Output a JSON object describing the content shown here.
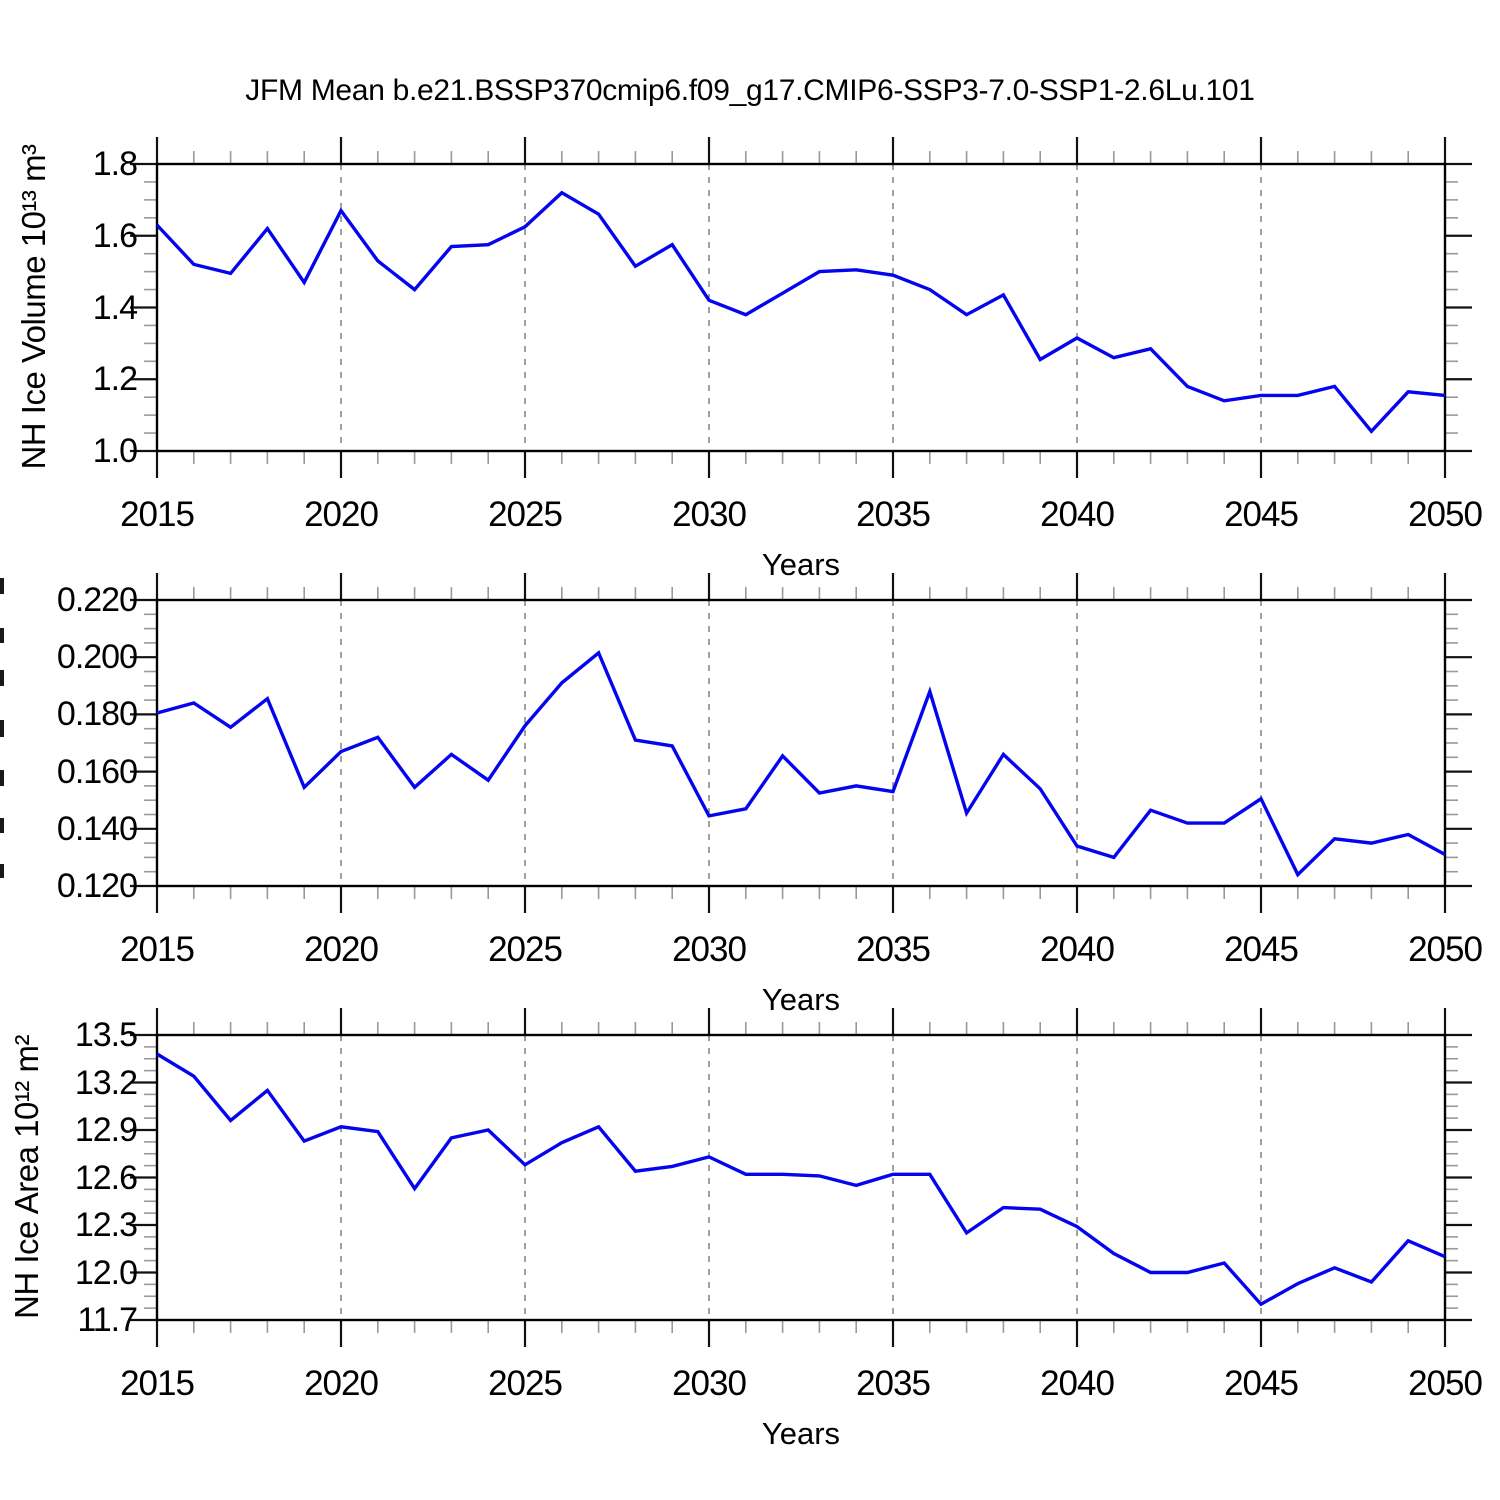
{
  "title": "JFM Mean b.e21.BSSP370cmip6.f09_g17.CMIP6-SSP3-7.0-SSP1-2.6Lu.101",
  "x_axis": {
    "label": "Years",
    "range": [
      2015,
      2050
    ],
    "major_step": 5,
    "minor_step": 1,
    "tick_labels": [
      "2015",
      "2020",
      "2025",
      "2030",
      "2035",
      "2040",
      "2045",
      "2050"
    ],
    "gridline_years": [
      2020,
      2025,
      2030,
      2035,
      2040,
      2045
    ]
  },
  "colors": {
    "line": "#0404ee",
    "gridline": "#787878",
    "axis": "#000000",
    "major_tick": "#111111",
    "minor_tick": "#9a9a9a",
    "background": "#ffffff",
    "text": "#000000"
  },
  "chart_data": [
    {
      "type": "line",
      "panel": "top",
      "ylabel": "NH Ice Volume 10¹³ m³",
      "xlabel": "Years",
      "ylim": [
        1.0,
        1.8
      ],
      "yticks": [
        1.0,
        1.2,
        1.4,
        1.6,
        1.8
      ],
      "ytick_labels": [
        "1.0",
        "1.2",
        "1.4",
        "1.6",
        "1.8"
      ],
      "y_minor_step": 0.05,
      "grid": "vertical-dashed",
      "legend": "none",
      "x": [
        2015,
        2016,
        2017,
        2018,
        2019,
        2020,
        2021,
        2022,
        2023,
        2024,
        2025,
        2026,
        2027,
        2028,
        2029,
        2030,
        2031,
        2032,
        2033,
        2034,
        2035,
        2036,
        2037,
        2038,
        2039,
        2040,
        2041,
        2042,
        2043,
        2044,
        2045,
        2046,
        2047,
        2048,
        2049,
        2050
      ],
      "values": [
        1.63,
        1.52,
        1.495,
        1.62,
        1.47,
        1.67,
        1.53,
        1.45,
        1.57,
        1.575,
        1.625,
        1.72,
        1.66,
        1.515,
        1.575,
        1.42,
        1.38,
        1.44,
        1.5,
        1.505,
        1.49,
        1.45,
        1.38,
        1.435,
        1.255,
        1.315,
        1.26,
        1.285,
        1.18,
        1.14,
        1.155,
        1.155,
        1.18,
        1.055,
        1.165,
        1.155
      ]
    },
    {
      "type": "line",
      "panel": "middle",
      "ylabel": "",
      "xlabel": "Years",
      "ylim": [
        0.12,
        0.22
      ],
      "yticks": [
        0.12,
        0.14,
        0.16,
        0.18,
        0.2,
        0.22
      ],
      "ytick_labels": [
        "0.120",
        "0.140",
        "0.160",
        "0.180",
        "0.200",
        "0.220"
      ],
      "y_minor_step": 0.005,
      "grid": "vertical-dashed",
      "legend": "none",
      "x": [
        2015,
        2016,
        2017,
        2018,
        2019,
        2020,
        2021,
        2022,
        2023,
        2024,
        2025,
        2026,
        2027,
        2028,
        2029,
        2030,
        2031,
        2032,
        2033,
        2034,
        2035,
        2036,
        2037,
        2038,
        2039,
        2040,
        2041,
        2042,
        2043,
        2044,
        2045,
        2046,
        2047,
        2048,
        2049,
        2050
      ],
      "values": [
        0.1805,
        0.184,
        0.1755,
        0.1855,
        0.1545,
        0.167,
        0.172,
        0.1545,
        0.166,
        0.157,
        0.176,
        0.191,
        0.2015,
        0.171,
        0.169,
        0.1445,
        0.147,
        0.1655,
        0.1525,
        0.155,
        0.153,
        0.188,
        0.1455,
        0.166,
        0.154,
        0.134,
        0.13,
        0.1465,
        0.142,
        0.142,
        0.1505,
        0.124,
        0.1365,
        0.135,
        0.138,
        0.131
      ]
    },
    {
      "type": "line",
      "panel": "bottom",
      "ylabel": "NH Ice Area 10¹² m²",
      "xlabel": "Years",
      "ylim": [
        11.7,
        13.5
      ],
      "yticks": [
        11.7,
        12.0,
        12.3,
        12.6,
        12.9,
        13.2,
        13.5
      ],
      "ytick_labels": [
        "11.7",
        "12.0",
        "12.3",
        "12.6",
        "12.9",
        "13.2",
        "13.5"
      ],
      "y_minor_step": 0.075,
      "grid": "vertical-dashed",
      "legend": "none",
      "x": [
        2015,
        2016,
        2017,
        2018,
        2019,
        2020,
        2021,
        2022,
        2023,
        2024,
        2025,
        2026,
        2027,
        2028,
        2029,
        2030,
        2031,
        2032,
        2033,
        2034,
        2035,
        2036,
        2037,
        2038,
        2039,
        2040,
        2041,
        2042,
        2043,
        2044,
        2045,
        2046,
        2047,
        2048,
        2049,
        2050
      ],
      "values": [
        13.38,
        13.24,
        12.96,
        13.15,
        12.83,
        12.92,
        12.89,
        12.53,
        12.85,
        12.9,
        12.68,
        12.82,
        12.92,
        12.64,
        12.67,
        12.73,
        12.62,
        12.62,
        12.61,
        12.55,
        12.62,
        12.62,
        12.25,
        12.41,
        12.4,
        12.29,
        12.12,
        12.0,
        12.0,
        12.06,
        11.8,
        11.93,
        12.03,
        11.94,
        12.2,
        12.1
      ]
    }
  ]
}
